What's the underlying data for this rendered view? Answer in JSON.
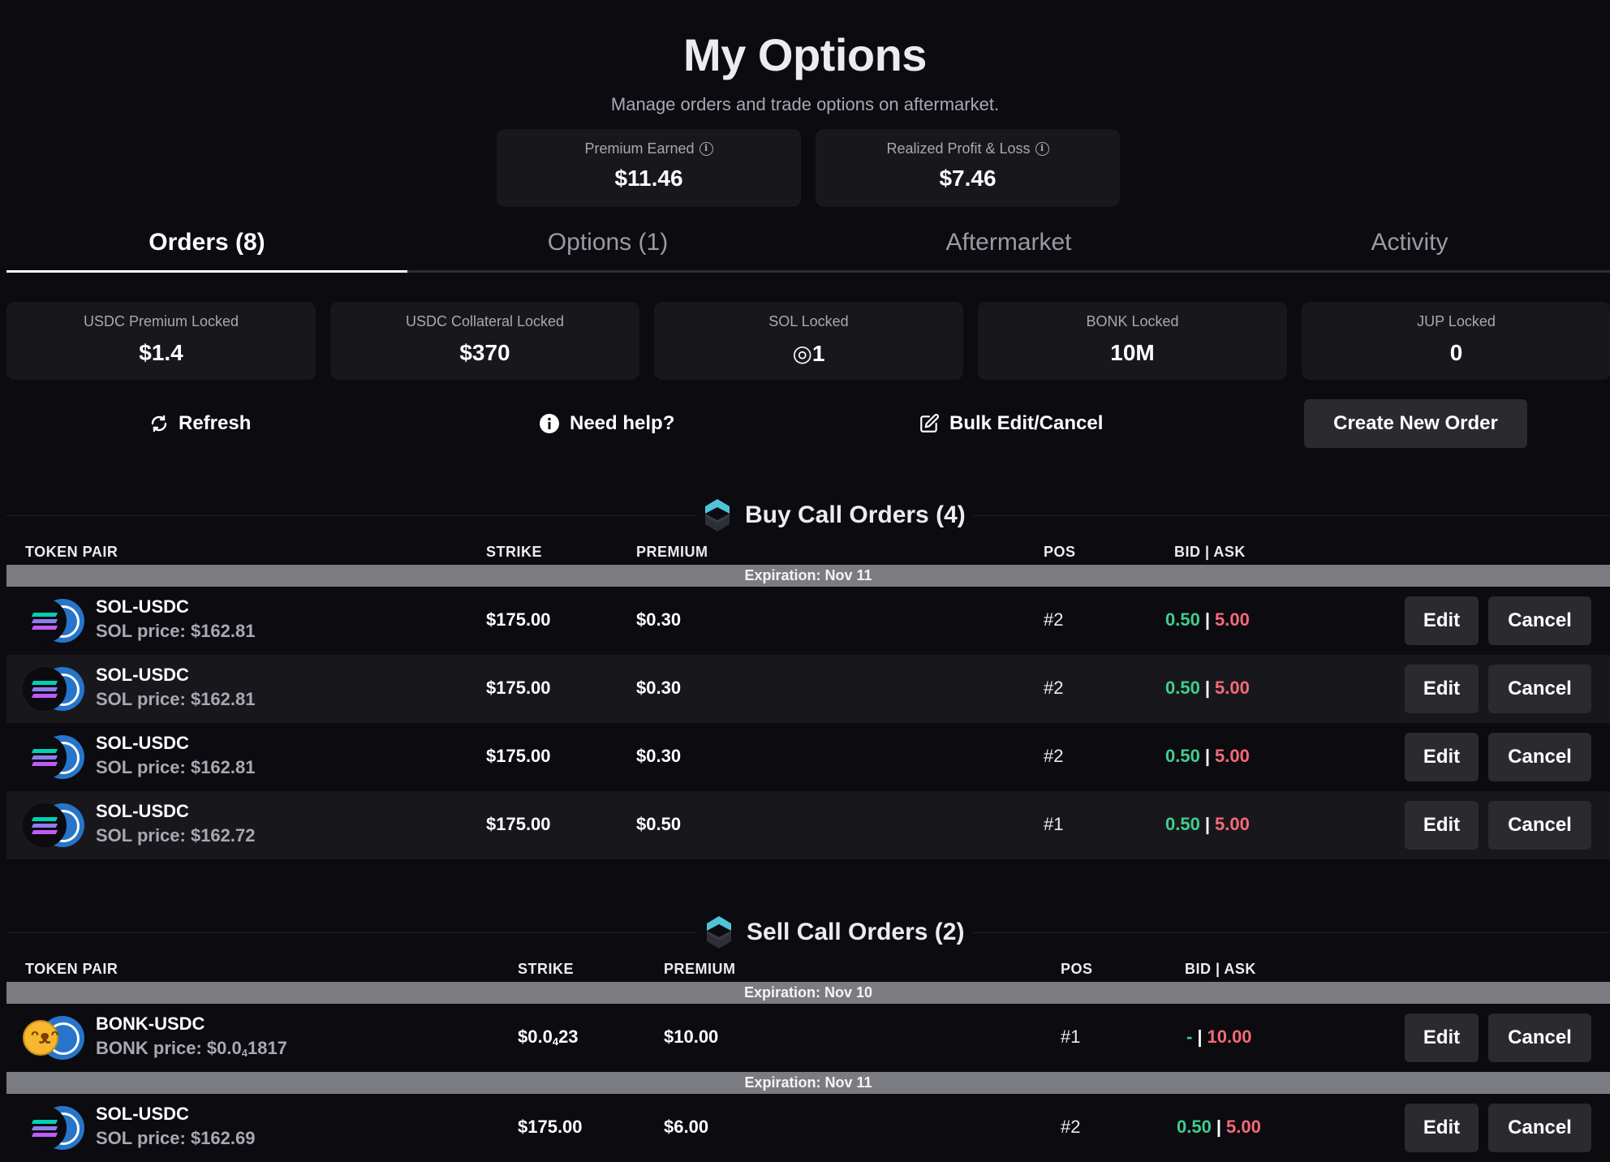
{
  "header": {
    "title": "My Options",
    "subtitle": "Manage orders and trade options on aftermarket."
  },
  "stats": [
    {
      "label": "Premium Earned",
      "value": "$11.46"
    },
    {
      "label": "Realized Profit & Loss",
      "value": "$7.46"
    }
  ],
  "tabs": [
    {
      "label": "Orders (8)",
      "active": true
    },
    {
      "label": "Options (1)",
      "active": false
    },
    {
      "label": "Aftermarket",
      "active": false
    },
    {
      "label": "Activity",
      "active": false
    }
  ],
  "locks": [
    {
      "label": "USDC Premium Locked",
      "value": "$1.4"
    },
    {
      "label": "USDC Collateral Locked",
      "value": "$370"
    },
    {
      "label": "SOL Locked",
      "value": "◎1"
    },
    {
      "label": "BONK Locked",
      "value": "10M"
    },
    {
      "label": "JUP Locked",
      "value": "0"
    }
  ],
  "actions": {
    "refresh": "Refresh",
    "help": "Need help?",
    "bulk": "Bulk Edit/Cancel",
    "create": "Create New Order"
  },
  "buy_calls": {
    "title": "Buy Call Orders (4)",
    "columns": {
      "pair": "TOKEN PAIR",
      "strike": "STRIKE",
      "premium": "PREMIUM",
      "pos": "POS",
      "bidask": "BID | ASK"
    },
    "expiration": "Expiration: Nov 11",
    "rows": [
      {
        "pair": "SOL-USDC",
        "price": "SOL price: $162.81",
        "strike": "$175.00",
        "premium": "$0.30",
        "pos": "#2",
        "bid": "0.50",
        "ask": "5.00"
      },
      {
        "pair": "SOL-USDC",
        "price": "SOL price: $162.81",
        "strike": "$175.00",
        "premium": "$0.30",
        "pos": "#2",
        "bid": "0.50",
        "ask": "5.00"
      },
      {
        "pair": "SOL-USDC",
        "price": "SOL price: $162.81",
        "strike": "$175.00",
        "premium": "$0.30",
        "pos": "#2",
        "bid": "0.50",
        "ask": "5.00"
      },
      {
        "pair": "SOL-USDC",
        "price": "SOL price: $162.72",
        "strike": "$175.00",
        "premium": "$0.50",
        "pos": "#1",
        "bid": "0.50",
        "ask": "5.00"
      }
    ]
  },
  "sell_calls": {
    "title": "Sell Call Orders (2)",
    "columns": {
      "pair": "TOKEN PAIR",
      "strike": "STRIKE",
      "premium": "PREMIUM",
      "pos": "POS",
      "bidask": "BID | ASK"
    },
    "exp1": "Expiration: Nov 10",
    "exp2": "Expiration: Nov 11",
    "bonk": {
      "pair": "BONK-USDC",
      "price_prefix": "BONK price: $0.0",
      "price_sub": "4",
      "price_suffix": "1817",
      "strike_prefix": "$0.0",
      "strike_sub": "4",
      "strike_suffix": "23",
      "premium": "$10.00",
      "pos": "#1",
      "bid": "-",
      "ask": "10.00"
    },
    "sol": {
      "pair": "SOL-USDC",
      "price": "SOL price: $162.69",
      "strike": "$175.00",
      "premium": "$6.00",
      "pos": "#2",
      "bid": "0.50",
      "ask": "5.00"
    }
  },
  "buttons": {
    "edit": "Edit",
    "cancel": "Cancel"
  },
  "colors": {
    "bid": "#3ecf8e",
    "ask": "#f7697a",
    "background": "#0b0b10",
    "card": "#17171c",
    "expiration_bar": "#7b7b82"
  },
  "icons": [
    "info-icon",
    "refresh-icon",
    "info-filled-icon",
    "edit-icon",
    "section-logo-icon",
    "sol-token-icon",
    "usdc-token-icon",
    "bonk-token-icon"
  ]
}
